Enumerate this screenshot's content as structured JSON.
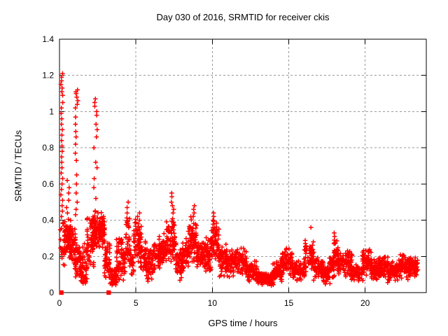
{
  "chart_data": {
    "type": "scatter",
    "title": "Day 030 of 2016, SRMTID for receiver ckis",
    "xlabel": "GPS time / hours",
    "ylabel": "SRMTID / TECUs",
    "xlim": [
      0,
      24
    ],
    "ylim": [
      0,
      1.4
    ],
    "xticks": [
      0,
      5,
      10,
      15,
      20
    ],
    "xtick_labels": [
      "0",
      "5",
      "10",
      "15",
      "20"
    ],
    "yticks": [
      0,
      0.2,
      0.4,
      0.6,
      0.8,
      1.0,
      1.2,
      1.4
    ],
    "ytick_labels": [
      "0",
      "0.2",
      "0.4",
      "0.6",
      "0.8",
      "1",
      "1.2",
      "1.4"
    ],
    "grid": true,
    "grid_color": "#9a9a9a",
    "axis_color": "#000000",
    "marker": "plus",
    "marker_color": "#ff0000",
    "seed": 1234,
    "outlier_squares": [
      {
        "x": 0.12,
        "y": 0
      },
      {
        "x": 3.22,
        "y": 0
      }
    ],
    "spike_columns": [
      {
        "t": 0.15,
        "jitter": 0.06,
        "ys": [
          1.21,
          1.19,
          1.17,
          1.15,
          1.13,
          1.11,
          1.09,
          1.05,
          1.02,
          0.99,
          0.96,
          0.93,
          0.9,
          0.87,
          0.84,
          0.81,
          0.78,
          0.75,
          0.72,
          0.69,
          0.66,
          0.63,
          0.6,
          0.57,
          0.54,
          0.51,
          0.48,
          0.45,
          0.42
        ]
      },
      {
        "t": 0.55,
        "jitter": 0.12,
        "ys": [
          0.62,
          0.58,
          0.55,
          0.51,
          0.47,
          0.44
        ]
      },
      {
        "t": 1.12,
        "jitter": 0.09,
        "ys": [
          1.12,
          1.11,
          1.1,
          1.1,
          1.08,
          1.06,
          1.04,
          1.02,
          0.97,
          0.93,
          0.89,
          0.86,
          0.82,
          0.77,
          0.73,
          0.65,
          0.6,
          0.55,
          0.5,
          0.46,
          0.43
        ]
      },
      {
        "t": 2.35,
        "jitter": 0.12,
        "ys": [
          1.07,
          1.05,
          1.03,
          1.0,
          0.98,
          0.93,
          0.9,
          0.86,
          0.8,
          0.72,
          0.69,
          0.63,
          0.58,
          0.52
        ]
      },
      {
        "t": 4.45,
        "jitter": 0.05,
        "ys": [
          0.5,
          0.47,
          0.44
        ]
      },
      {
        "t": 5.15,
        "jitter": 0.09,
        "ys": [
          0.44,
          0.42,
          0.4,
          0.38
        ]
      },
      {
        "t": 7.4,
        "jitter": 0.09,
        "ys": [
          0.55,
          0.53,
          0.5,
          0.48,
          0.46,
          0.44
        ]
      },
      {
        "t": 8.8,
        "jitter": 0.08,
        "ys": [
          0.48,
          0.46,
          0.44,
          0.42
        ]
      },
      {
        "t": 10.1,
        "jitter": 0.08,
        "ys": [
          0.44,
          0.42,
          0.4
        ]
      },
      {
        "t": 16.45,
        "jitter": 0.05,
        "ys": [
          0.36,
          0.25,
          0.22
        ]
      },
      {
        "t": 18.0,
        "jitter": 0.05,
        "ys": [
          0.33,
          0.31,
          0.29
        ]
      }
    ],
    "bands": [
      {
        "t": [
          0.02,
          0.35
        ],
        "y": [
          0.13,
          0.4
        ],
        "n": 22
      },
      {
        "t": [
          0.3,
          0.75
        ],
        "y": [
          0.17,
          0.42
        ],
        "n": 60
      },
      {
        "t": [
          0.55,
          1.05
        ],
        "y": [
          0.15,
          0.4
        ],
        "n": 60
      },
      {
        "t": [
          1.0,
          1.45
        ],
        "y": [
          0.07,
          0.3
        ],
        "n": 55
      },
      {
        "t": [
          1.4,
          1.85
        ],
        "y": [
          0.04,
          0.2
        ],
        "n": 50
      },
      {
        "t": [
          1.45,
          1.8
        ],
        "y": [
          0.18,
          0.3
        ],
        "n": 8
      },
      {
        "t": [
          1.8,
          2.3
        ],
        "y": [
          0.12,
          0.45
        ],
        "n": 70
      },
      {
        "t": [
          2.25,
          2.95
        ],
        "y": [
          0.22,
          0.46
        ],
        "n": 110
      },
      {
        "t": [
          2.9,
          3.3
        ],
        "y": [
          0.07,
          0.3
        ],
        "n": 45
      },
      {
        "t": [
          3.25,
          3.75
        ],
        "y": [
          0.03,
          0.15
        ],
        "n": 55
      },
      {
        "t": [
          3.7,
          4.3
        ],
        "y": [
          0.05,
          0.33
        ],
        "n": 75
      },
      {
        "t": [
          4.3,
          4.6
        ],
        "y": [
          0.15,
          0.45
        ],
        "n": 30
      },
      {
        "t": [
          4.55,
          4.85
        ],
        "y": [
          0.08,
          0.25
        ],
        "n": 30
      },
      {
        "t": [
          4.85,
          5.35
        ],
        "y": [
          0.15,
          0.42
        ],
        "n": 55
      },
      {
        "t": [
          5.3,
          5.65
        ],
        "y": [
          0.1,
          0.3
        ],
        "n": 35
      },
      {
        "t": [
          5.6,
          6.15
        ],
        "y": [
          0.05,
          0.25
        ],
        "n": 55
      },
      {
        "t": [
          6.1,
          6.55
        ],
        "y": [
          0.1,
          0.3
        ],
        "n": 45
      },
      {
        "t": [
          6.5,
          7.0
        ],
        "y": [
          0.12,
          0.35
        ],
        "n": 65
      },
      {
        "t": [
          6.95,
          7.65
        ],
        "y": [
          0.15,
          0.42
        ],
        "n": 75
      },
      {
        "t": [
          7.6,
          8.1
        ],
        "y": [
          0.06,
          0.25
        ],
        "n": 50
      },
      {
        "t": [
          8.05,
          8.45
        ],
        "y": [
          0.1,
          0.33
        ],
        "n": 45
      },
      {
        "t": [
          8.4,
          9.0
        ],
        "y": [
          0.15,
          0.44
        ],
        "n": 80
      },
      {
        "t": [
          8.95,
          9.55
        ],
        "y": [
          0.12,
          0.3
        ],
        "n": 60
      },
      {
        "t": [
          9.5,
          9.95
        ],
        "y": [
          0.1,
          0.32
        ],
        "n": 45
      },
      {
        "t": [
          9.9,
          10.45
        ],
        "y": [
          0.15,
          0.4
        ],
        "n": 65
      },
      {
        "t": [
          10.4,
          10.95
        ],
        "y": [
          0.08,
          0.28
        ],
        "n": 55
      },
      {
        "t": [
          10.9,
          11.55
        ],
        "y": [
          0.08,
          0.25
        ],
        "n": 65
      },
      {
        "t": [
          11.5,
          12.25
        ],
        "y": [
          0.08,
          0.26
        ],
        "n": 70
      },
      {
        "t": [
          12.2,
          12.95
        ],
        "y": [
          0.05,
          0.18
        ],
        "n": 70
      },
      {
        "t": [
          12.9,
          14.0
        ],
        "y": [
          0.03,
          0.12
        ],
        "n": 110
      },
      {
        "t": [
          13.95,
          14.55
        ],
        "y": [
          0.05,
          0.18
        ],
        "n": 65
      },
      {
        "t": [
          14.5,
          15.25
        ],
        "y": [
          0.08,
          0.27
        ],
        "n": 70
      },
      {
        "t": [
          15.2,
          16.05
        ],
        "y": [
          0.05,
          0.18
        ],
        "n": 75
      },
      {
        "t": [
          16.0,
          16.65
        ],
        "y": [
          0.08,
          0.3
        ],
        "n": 60
      },
      {
        "t": [
          16.6,
          17.3
        ],
        "y": [
          0.06,
          0.2
        ],
        "n": 65
      },
      {
        "t": [
          17.25,
          17.7
        ],
        "y": [
          0.04,
          0.16
        ],
        "n": 50
      },
      {
        "t": [
          17.65,
          18.0
        ],
        "y": [
          0.08,
          0.22
        ],
        "n": 40
      },
      {
        "t": [
          17.95,
          18.25
        ],
        "y": [
          0.12,
          0.3
        ],
        "n": 35
      },
      {
        "t": [
          18.2,
          19.15
        ],
        "y": [
          0.08,
          0.25
        ],
        "n": 85
      },
      {
        "t": [
          19.1,
          19.85
        ],
        "y": [
          0.05,
          0.16
        ],
        "n": 65
      },
      {
        "t": [
          19.8,
          20.45
        ],
        "y": [
          0.08,
          0.25
        ],
        "n": 65
      },
      {
        "t": [
          20.4,
          21.0
        ],
        "y": [
          0.06,
          0.2
        ],
        "n": 65
      },
      {
        "t": [
          20.95,
          21.5
        ],
        "y": [
          0.08,
          0.22
        ],
        "n": 65
      },
      {
        "t": [
          21.45,
          22.25
        ],
        "y": [
          0.05,
          0.18
        ],
        "n": 80
      },
      {
        "t": [
          22.2,
          22.95
        ],
        "y": [
          0.07,
          0.22
        ],
        "n": 70
      },
      {
        "t": [
          22.9,
          23.45
        ],
        "y": [
          0.08,
          0.2
        ],
        "n": 60
      }
    ]
  }
}
